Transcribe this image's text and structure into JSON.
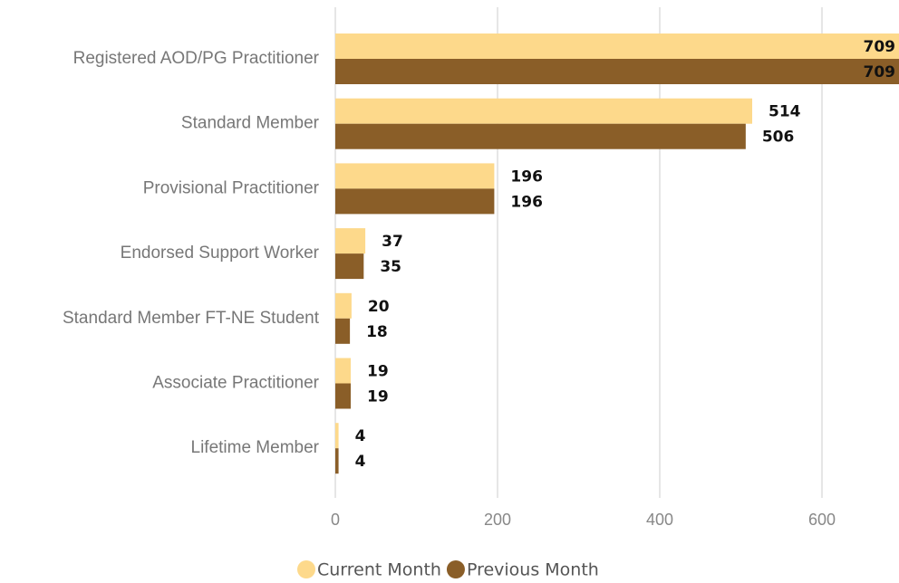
{
  "chart_data": {
    "type": "bar",
    "orientation": "horizontal",
    "categories": [
      "Registered AOD/PG Practitioner",
      "Standard Member",
      "Provisional Practitioner",
      "Endorsed Support Worker",
      "Standard Member FT-NE Student",
      "Associate Practitioner",
      "Lifetime Member"
    ],
    "series": [
      {
        "name": "Current Month",
        "color": "#fdd98b",
        "values": [
          709,
          514,
          196,
          37,
          20,
          19,
          4
        ]
      },
      {
        "name": "Previous Month",
        "color": "#8a5e28",
        "values": [
          709,
          506,
          196,
          35,
          18,
          19,
          4
        ]
      }
    ],
    "xlim": [
      0,
      695
    ],
    "xticks": [
      0,
      200,
      400,
      600
    ],
    "grid": true,
    "legend": "bottom"
  }
}
